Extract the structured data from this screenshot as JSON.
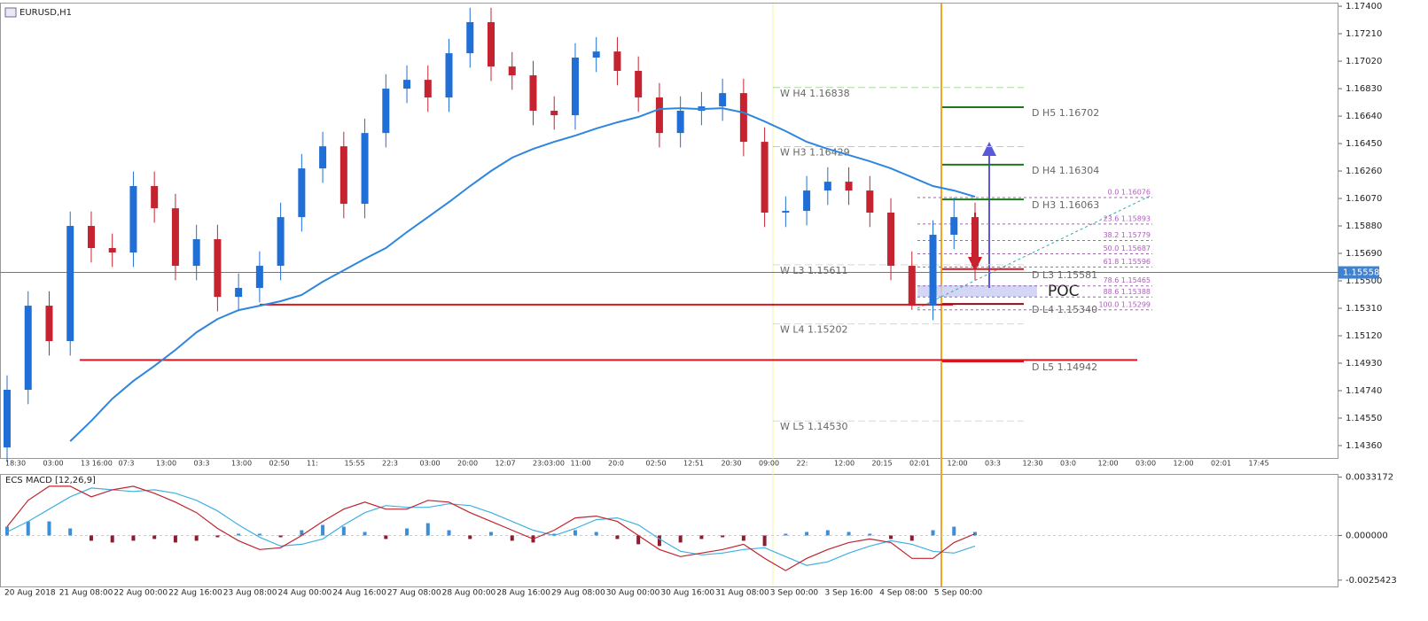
{
  "chart_data": [
    {
      "type": "candlestick",
      "title": "EURUSD,H1",
      "open": [
        1.14347,
        1.14746,
        1.15328,
        1.15083,
        1.1588,
        1.15727,
        1.15696,
        1.16156,
        1.16002,
        1.15604,
        1.15788,
        1.15389,
        1.15451,
        1.15604,
        1.15941,
        1.16278,
        1.16431,
        1.16033,
        1.16523,
        1.1683,
        1.16891,
        1.16769,
        1.17075,
        1.1729,
        1.16983,
        1.16922,
        1.16677,
        1.16646,
        1.17045,
        1.17087,
        1.16953,
        1.16769,
        1.16523,
        1.16677,
        1.16707,
        1.16799,
        1.16462,
        1.15972,
        1.15984,
        1.16125,
        1.16186,
        1.16125,
        1.15972,
        1.15604,
        1.15328,
        1.15819,
        1.15941
      ],
      "high": [
        1.14846,
        1.15428,
        1.15428,
        1.1598,
        1.1598,
        1.15827,
        1.16256,
        1.16256,
        1.16102,
        1.15888,
        1.15888,
        1.15551,
        1.15704,
        1.16041,
        1.16378,
        1.16531,
        1.16531,
        1.16623,
        1.1693,
        1.16991,
        1.16991,
        1.17175,
        1.1739,
        1.1739,
        1.17083,
        1.17022,
        1.16777,
        1.17145,
        1.17187,
        1.17187,
        1.17053,
        1.16869,
        1.16777,
        1.16807,
        1.16899,
        1.16899,
        1.16562,
        1.16084,
        1.16225,
        1.16286,
        1.16286,
        1.16225,
        1.16072,
        1.15704,
        1.15919,
        1.16076,
        1.16041
      ],
      "low": [
        1.14247,
        1.14646,
        1.14983,
        1.14983,
        1.15627,
        1.15596,
        1.15596,
        1.15902,
        1.15504,
        1.15504,
        1.15289,
        1.15289,
        1.15351,
        1.15504,
        1.15841,
        1.16178,
        1.15933,
        1.15933,
        1.16423,
        1.1673,
        1.16669,
        1.16669,
        1.16975,
        1.16883,
        1.16822,
        1.16577,
        1.16546,
        1.16546,
        1.16945,
        1.16853,
        1.16669,
        1.16423,
        1.16423,
        1.16577,
        1.16607,
        1.16362,
        1.15872,
        1.15872,
        1.15884,
        1.16025,
        1.16025,
        1.15872,
        1.15504,
        1.15299,
        1.15228,
        1.15719,
        1.15504
      ],
      "close": [
        1.14746,
        1.15328,
        1.15083,
        1.1588,
        1.15727,
        1.15696,
        1.16156,
        1.16002,
        1.15604,
        1.15788,
        1.15389,
        1.15451,
        1.15604,
        1.15941,
        1.16278,
        1.16431,
        1.16033,
        1.16523,
        1.1683,
        1.16891,
        1.16769,
        1.17075,
        1.1729,
        1.16983,
        1.16922,
        1.16677,
        1.16646,
        1.17045,
        1.17087,
        1.16953,
        1.16769,
        1.16523,
        1.16677,
        1.16707,
        1.16799,
        1.16462,
        1.15972,
        1.15984,
        1.16125,
        1.16186,
        1.16125,
        1.15972,
        1.15604,
        1.15328,
        1.15819,
        1.15941,
        1.15604
      ],
      "up_color": "#1f6fd6",
      "down_color": "#c4232f",
      "ma": {
        "color": "#2e86de",
        "values": [
          null,
          null,
          null,
          1.1439,
          1.14531,
          1.14684,
          1.14807,
          1.14911,
          1.15022,
          1.15144,
          1.15236,
          1.15297,
          1.15328,
          1.15359,
          1.15402,
          1.15494,
          1.15573,
          1.15653,
          1.15727,
          1.15837,
          1.15941,
          1.16045,
          1.16156,
          1.1626,
          1.16352,
          1.16413,
          1.16462,
          1.16505,
          1.16554,
          1.16597,
          1.16634,
          1.16689,
          1.16695,
          1.16689,
          1.16695,
          1.16664,
          1.16603,
          1.16536,
          1.16462,
          1.16413,
          1.1637,
          1.16327,
          1.16278,
          1.16217,
          1.16156,
          1.16125,
          1.16082
        ]
      },
      "ylim": [
        1.14274,
        1.17425
      ],
      "yticks": [
        {
          "value": 1.174,
          "label": "1.17400"
        },
        {
          "value": 1.1721,
          "label": "1.17210"
        },
        {
          "value": 1.1702,
          "label": "1.17020"
        },
        {
          "value": 1.1683,
          "label": "1.16830"
        },
        {
          "value": 1.1664,
          "label": "1.16640"
        },
        {
          "value": 1.1645,
          "label": "1.16450"
        },
        {
          "value": 1.1626,
          "label": "1.16260"
        },
        {
          "value": 1.1607,
          "label": "1.16070"
        },
        {
          "value": 1.1588,
          "label": "1.15880"
        },
        {
          "value": 1.1569,
          "label": "1.15690"
        },
        {
          "value": 1.155,
          "label": "1.15500"
        },
        {
          "value": 1.1531,
          "label": "1.15310"
        },
        {
          "value": 1.1512,
          "label": "1.15120"
        },
        {
          "value": 1.1493,
          "label": "1.14930"
        },
        {
          "value": 1.1474,
          "label": "1.14740"
        },
        {
          "value": 1.1455,
          "label": "1.14550"
        },
        {
          "value": 1.1436,
          "label": "1.14360"
        }
      ],
      "current_price": 1.15558,
      "current_price_color": "#3f82d2",
      "support_lines": [
        {
          "value": 1.15335,
          "color": "#e0141e"
        },
        {
          "value": 1.14952,
          "color": "#e0141e"
        }
      ],
      "pivots": [
        {
          "label": "W H4 1.16838",
          "value": 1.16838,
          "period": "W",
          "color": "#a8dca0",
          "style": "dashed"
        },
        {
          "label": "W H3 1.16429",
          "value": 1.16429,
          "period": "W",
          "color": "#a8dca0",
          "style": "dashed"
        },
        {
          "label": "W L3 1.15611",
          "value": 1.15611,
          "period": "W",
          "color": "#d8d8d8",
          "style": "dashed"
        },
        {
          "label": "W L4 1.15202",
          "value": 1.15202,
          "period": "W",
          "color": "#d8d8d8",
          "style": "dashed"
        },
        {
          "label": "W L5 1.14530",
          "value": 1.1453,
          "period": "W",
          "color": "#d8d8d8",
          "style": "dashed"
        },
        {
          "label": "D H5 1.16702",
          "value": 1.16702,
          "period": "D",
          "color": "#1a7a1a",
          "style": "solid"
        },
        {
          "label": "D H4 1.16304",
          "value": 1.16304,
          "period": "D",
          "color": "#1a7a1a",
          "style": "solid"
        },
        {
          "label": "D H3 1.16063",
          "value": 1.16063,
          "period": "D",
          "color": "#1a7a1a",
          "style": "solid"
        },
        {
          "label": "D L3 1.15581",
          "value": 1.15581,
          "period": "D",
          "color": "#d8141e",
          "style": "solid"
        },
        {
          "label": "D L4 1.15340",
          "value": 1.1534,
          "period": "D",
          "color": "#8e0f18",
          "style": "solid"
        },
        {
          "label": "D L5 1.14942",
          "value": 1.14942,
          "period": "D",
          "color": "#d8141e",
          "style": "solid"
        }
      ],
      "fibo_color": "#b05cc0",
      "fibo": [
        {
          "label": "0.0  1.16076",
          "value": 1.16076
        },
        {
          "label": "23.6  1.15893",
          "value": 1.15893
        },
        {
          "label": "38.2  1.15779",
          "value": 1.15779
        },
        {
          "label": "50.0  1.15687",
          "value": 1.15687
        },
        {
          "label": "61.8  1.15596",
          "value": 1.15596
        },
        {
          "label": "78.6  1.15465",
          "value": 1.15465
        },
        {
          "label": "88.6  1.15388",
          "value": 1.15388
        },
        {
          "label": "100.0  1.15299",
          "value": 1.15299
        }
      ],
      "poc": "POC",
      "x_labels": [
        "20 Aug 2018",
        "21 Aug 08:00",
        "22 Aug 00:00",
        "22 Aug 16:00",
        "23 Aug 08:00",
        "24 Aug 00:00",
        "24 Aug 16:00",
        "27 Aug 08:00",
        "28 Aug 00:00",
        "28 Aug 16:00",
        "29 Aug 08:00",
        "30 Aug 00:00",
        "30 Aug 16:00",
        "31 Aug 08:00",
        "3 Sep 00:00",
        "3 Sep 16:00",
        "4 Sep 08:00",
        "5 Sep 00:00"
      ],
      "time_labels": [
        "18:30",
        "03:00",
        "13 16:00",
        "07:3",
        "13:00",
        "03:3",
        "13:00",
        "02:50",
        "11:",
        "15:55",
        "22:3",
        "03:00",
        "20:00",
        "12:07",
        "23:03:00",
        "11:00",
        "20:0",
        "02:50",
        "12:51",
        "20:30",
        "09:00",
        "22:",
        "12:00",
        "20:15",
        "02:01",
        "12:00",
        "03:3",
        "12:30",
        "03:0",
        "12:00",
        "03:00",
        "12:00",
        "02:01",
        "17:45"
      ]
    },
    {
      "type": "macd",
      "title": "ECS MACD [12,26,9]",
      "histogram": {
        "pos_color": "#3b8ed8",
        "neg_color": "#8e1b2e",
        "values": [
          0.0005,
          0.0008,
          0.0008,
          0.0004,
          -0.0003,
          -0.0004,
          -0.0003,
          -0.0002,
          -0.0004,
          -0.0003,
          -0.0001,
          0.0001,
          0.0001,
          -0.0001,
          0.0003,
          0.0006,
          0.0005,
          0.0002,
          -0.0002,
          0.0004,
          0.0007,
          0.0003,
          -0.0002,
          0.0002,
          -0.0003,
          -0.0004,
          0.0001,
          0.0003,
          0.0002,
          -0.0002,
          -0.0005,
          -0.0006,
          -0.0004,
          -0.0002,
          -0.0001,
          -0.0003,
          -0.0006,
          0.0001,
          0.0002,
          0.0003,
          0.0002,
          0.0001,
          -0.0002,
          -0.0003,
          0.0003,
          0.0005,
          0.0002
        ]
      },
      "macd": {
        "color": "#c0232f",
        "values": [
          0.0005,
          0.002,
          0.0028,
          0.0028,
          0.0022,
          0.0026,
          0.0028,
          0.0024,
          0.0019,
          0.0013,
          0.0004,
          -0.0003,
          -0.0008,
          -0.0007,
          0,
          0.0008,
          0.0015,
          0.0019,
          0.0015,
          0.0015,
          0.002,
          0.0019,
          0.0013,
          0.0008,
          0.0003,
          -0.0002,
          0.0003,
          0.001,
          0.0011,
          0.0008,
          0,
          -0.0008,
          -0.0012,
          -0.001,
          -0.0008,
          -0.0005,
          -0.0013,
          -0.002,
          -0.0013,
          -0.0008,
          -0.0004,
          -0.0002,
          -0.0004,
          -0.0013,
          -0.0013,
          -0.0004,
          0.0001
        ]
      },
      "signal": {
        "color": "#40b0e0",
        "values": [
          0.0002,
          0.0008,
          0.0015,
          0.0022,
          0.0027,
          0.0026,
          0.0025,
          0.0026,
          0.0024,
          0.002,
          0.0014,
          0.0006,
          -0.0001,
          -0.0006,
          -0.0005,
          -0.0002,
          0.0006,
          0.0013,
          0.0017,
          0.0016,
          0.0016,
          0.0018,
          0.0017,
          0.0013,
          0.0008,
          0.0003,
          0,
          0.0004,
          0.0009,
          0.001,
          0.0006,
          -0.0002,
          -0.0009,
          -0.0011,
          -0.001,
          -0.0008,
          -0.0007,
          -0.0012,
          -0.0017,
          -0.0015,
          -0.001,
          -0.0006,
          -0.0003,
          -0.0005,
          -0.0009,
          -0.001,
          -0.0006
        ]
      },
      "ylim": [
        -0.0029,
        0.0035
      ],
      "yticks": [
        0.0033172,
        {
          "value": 0,
          "label": "0.000000"
        },
        -0.0025423
      ]
    }
  ]
}
